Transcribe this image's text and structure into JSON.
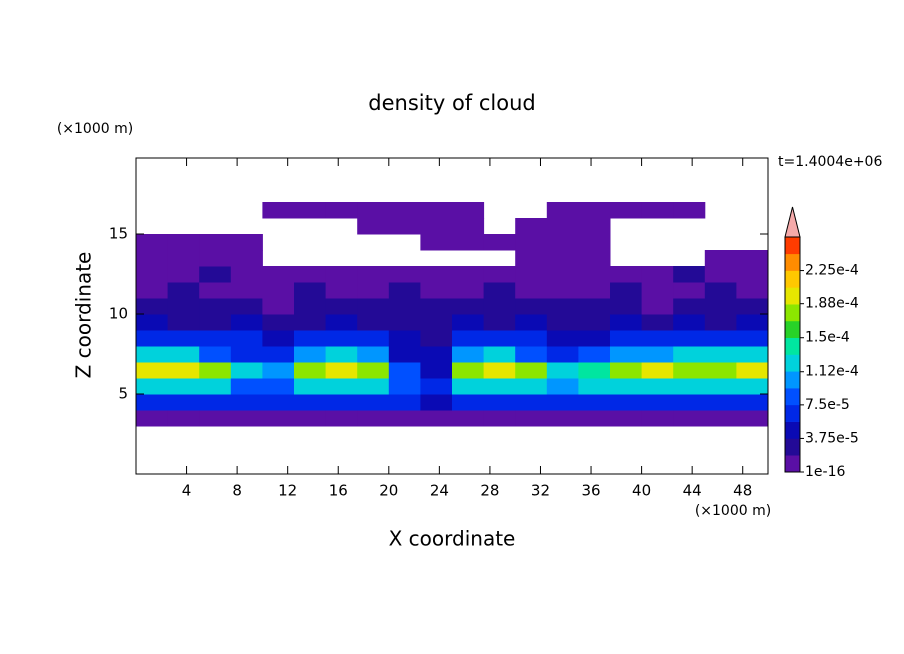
{
  "chart_data": {
    "type": "contour",
    "title": "density of cloud",
    "x_label": "X coordinate",
    "y_label": "Z coordinate",
    "x_unit": "(×1000 m)",
    "y_unit": "(×1000 m)",
    "annotation": "t=1.4004e+06",
    "xlim": [
      0,
      50
    ],
    "ylim": [
      0,
      19.75
    ],
    "xticks": [
      4,
      8,
      12,
      16,
      20,
      24,
      28,
      32,
      36,
      40,
      44,
      48
    ],
    "yticks": [
      5,
      10,
      15
    ],
    "x": [
      1.25,
      3.75,
      6.25,
      8.75,
      11.25,
      13.75,
      16.25,
      18.75,
      21.25,
      23.75,
      26.25,
      28.75,
      31.25,
      33.75,
      36.25,
      38.75,
      41.25,
      43.75,
      46.25,
      48.75
    ],
    "y": [
      3.5,
      4.5,
      5.5,
      6.5,
      7.5,
      8.5,
      9.5,
      10.5,
      11.5,
      12.5,
      13.5,
      14.5,
      15.5,
      16.5
    ],
    "z": [
      [
        5e-06,
        5e-06,
        5e-06,
        5e-06,
        5e-06,
        5e-06,
        5e-06,
        5e-06,
        5e-06,
        5e-06,
        5e-06,
        5e-06,
        5e-06,
        5e-06,
        5e-06,
        5e-06,
        5e-06,
        5e-06,
        5e-06,
        5e-06
      ],
      [
        7e-05,
        7e-05,
        7e-05,
        7e-05,
        7e-05,
        7e-05,
        7e-05,
        7e-05,
        7e-05,
        4e-05,
        7e-05,
        7e-05,
        7e-05,
        7e-05,
        7e-05,
        7e-05,
        7e-05,
        7e-05,
        7e-05,
        7e-05
      ],
      [
        0.00012,
        0.00012,
        0.00012,
        9e-05,
        9e-05,
        0.00012,
        0.00012,
        0.00012,
        9e-05,
        7e-05,
        0.00012,
        0.00012,
        0.00012,
        0.00011,
        0.00012,
        0.00012,
        0.00012,
        0.00012,
        0.00012,
        0.00012
      ],
      [
        0.00019,
        0.00019,
        0.00017,
        0.00013,
        0.00011,
        0.00017,
        0.00019,
        0.00017,
        9e-05,
        4e-05,
        0.00017,
        0.00019,
        0.00017,
        0.00012,
        0.00014,
        0.00017,
        0.00019,
        0.00017,
        0.00017,
        0.00019
      ],
      [
        0.00013,
        0.00013,
        9e-05,
        7e-05,
        7e-05,
        0.00011,
        0.00012,
        0.00011,
        5e-05,
        4e-05,
        0.00011,
        0.00012,
        9e-05,
        7e-05,
        9e-05,
        0.00011,
        0.00011,
        0.00012,
        0.00012,
        0.00013
      ],
      [
        7e-05,
        6e-05,
        6e-05,
        6e-05,
        5e-05,
        6e-05,
        6e-05,
        6e-05,
        4e-05,
        3e-05,
        6e-05,
        6e-05,
        6e-05,
        5e-05,
        5e-05,
        6e-05,
        6e-05,
        6e-05,
        7e-05,
        7e-05
      ],
      [
        4e-05,
        3.5e-05,
        3.5e-05,
        4e-05,
        3.5e-05,
        3.5e-05,
        4e-05,
        3.5e-05,
        3e-05,
        3e-05,
        4e-05,
        3.5e-05,
        4e-05,
        3.5e-05,
        3.5e-05,
        4e-05,
        3.5e-05,
        4e-05,
        3.5e-05,
        4e-05
      ],
      [
        2e-05,
        2e-05,
        2e-05,
        2e-05,
        1e-05,
        2e-05,
        2e-05,
        2e-05,
        2e-05,
        2e-05,
        2e-05,
        2e-05,
        2e-05,
        2e-05,
        2e-05,
        2e-05,
        1e-05,
        2e-05,
        2e-05,
        2e-05
      ],
      [
        1e-05,
        2e-05,
        1e-05,
        1e-05,
        1e-05,
        2e-05,
        1e-05,
        1e-05,
        2e-05,
        1e-05,
        1e-05,
        2e-05,
        1e-05,
        1e-05,
        1e-05,
        2e-05,
        1e-05,
        1e-05,
        2e-05,
        1e-05
      ],
      [
        5e-06,
        5e-06,
        2e-05,
        5e-06,
        5e-06,
        5e-06,
        5e-06,
        5e-06,
        5e-06,
        5e-06,
        5e-06,
        5e-06,
        5e-06,
        5e-06,
        5e-06,
        5e-06,
        5e-06,
        2e-05,
        5e-06,
        5e-06
      ],
      [
        5e-06,
        5e-06,
        5e-06,
        5e-06,
        null,
        null,
        null,
        null,
        null,
        null,
        null,
        null,
        5e-06,
        5e-06,
        5e-06,
        null,
        null,
        null,
        5e-06,
        5e-06
      ],
      [
        5e-06,
        5e-06,
        5e-06,
        5e-06,
        null,
        null,
        null,
        null,
        null,
        5e-06,
        5e-06,
        5e-06,
        5e-06,
        5e-06,
        5e-06,
        null,
        null,
        null,
        null,
        null
      ],
      [
        null,
        null,
        null,
        null,
        null,
        null,
        null,
        5e-06,
        5e-06,
        5e-06,
        5e-06,
        null,
        5e-06,
        5e-06,
        5e-06,
        null,
        null,
        null,
        null,
        null
      ],
      [
        null,
        null,
        null,
        null,
        5e-06,
        5e-06,
        5e-06,
        5e-06,
        5e-06,
        5e-06,
        5e-06,
        null,
        null,
        5e-06,
        5e-06,
        5e-06,
        5e-06,
        5e-06,
        null,
        null
      ]
    ],
    "colorbar": {
      "levels": [
        1e-16,
        1.875e-05,
        3.75e-05,
        5.625e-05,
        7.5e-05,
        9.375e-05,
        0.0001125,
        0.00013125,
        0.00015,
        0.00016875,
        0.0001875,
        0.00020625,
        0.000225,
        0.00024375,
        0.0002625
      ],
      "colors": [
        "#5a0fa5",
        "#230a96",
        "#0a0ab4",
        "#0028e6",
        "#0050ff",
        "#0096ff",
        "#00d2dc",
        "#00e6a0",
        "#28d228",
        "#8ce600",
        "#e6e600",
        "#ffc800",
        "#ff8c00",
        "#ff3c00"
      ],
      "extend_color": "#f5aaaa",
      "ticks": [
        {
          "value": 1e-16,
          "label": "1e-16"
        },
        {
          "value": 3.75e-05,
          "label": "3.75e-5"
        },
        {
          "value": 7.5e-05,
          "label": "7.5e-5"
        },
        {
          "value": 0.000112,
          "label": "1.12e-4"
        },
        {
          "value": 0.00015,
          "label": "1.5e-4"
        },
        {
          "value": 0.000188,
          "label": "1.88e-4"
        },
        {
          "value": 0.000225,
          "label": "2.25e-4"
        }
      ]
    }
  }
}
